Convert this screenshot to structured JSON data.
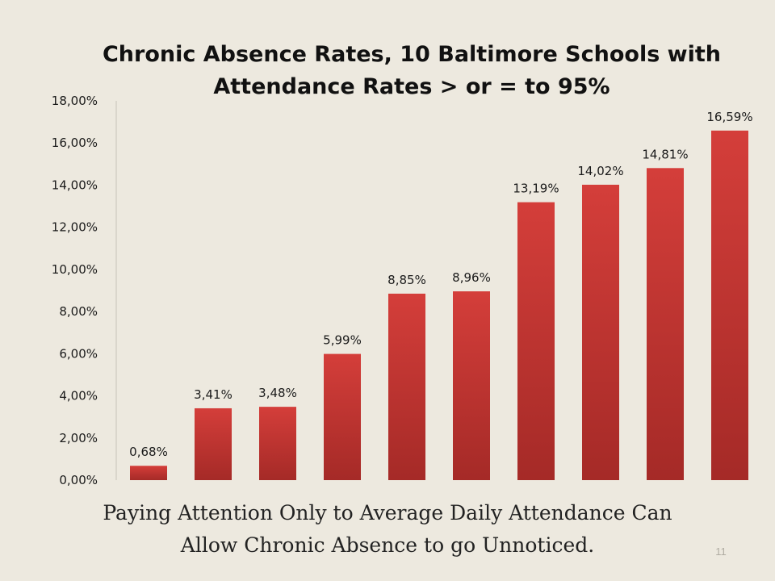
{
  "slide": {
    "title_lines": [
      "Chronic Absence Rates, 10 Baltimore Schools with",
      "Attendance Rates > or = to 95%"
    ],
    "caption_lines": [
      "Paying Attention Only to Average Daily Attendance Can",
      "Allow Chronic Absence to go Unnoticed."
    ],
    "page_number": "11",
    "background_color": "#ede9df"
  },
  "chart_data": {
    "type": "bar",
    "title": "Chronic Absence Rates, 10 Baltimore Schools with Attendance Rates > or = to 95%",
    "xlabel": "",
    "ylabel": "",
    "categories": [
      "",
      "",
      "",
      "",
      "",
      "",
      "",
      "",
      "",
      ""
    ],
    "values": [
      0.68,
      3.41,
      3.48,
      5.99,
      8.85,
      8.96,
      13.19,
      14.02,
      14.81,
      16.59
    ],
    "data_labels": [
      "0,68%",
      "3,41%",
      "3,48%",
      "5,99%",
      "8,85%",
      "8,96%",
      "13,19%",
      "14,02%",
      "14,81%",
      "16,59%"
    ],
    "ylim": [
      0,
      18
    ],
    "y_ticks": [
      0,
      2,
      4,
      6,
      8,
      10,
      12,
      14,
      16,
      18
    ],
    "y_tick_labels": [
      "0,00%",
      "2,00%",
      "4,00%",
      "6,00%",
      "8,00%",
      "10,00%",
      "12,00%",
      "14,00%",
      "16,00%",
      "18,00%"
    ],
    "grid": false,
    "legend": "none",
    "bar_color_top": "#d43e3a",
    "bar_color_bottom": "#a52a27"
  }
}
